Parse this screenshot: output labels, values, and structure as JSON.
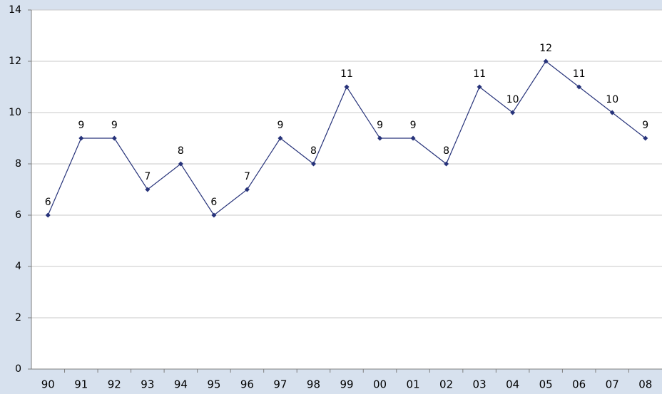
{
  "chart_data": {
    "type": "line",
    "categories": [
      "90",
      "91",
      "92",
      "93",
      "94",
      "95",
      "96",
      "97",
      "98",
      "99",
      "00",
      "01",
      "02",
      "03",
      "04",
      "05",
      "06",
      "07",
      "08"
    ],
    "values": [
      6,
      9,
      9,
      7,
      8,
      6,
      7,
      9,
      8,
      11,
      9,
      9,
      8,
      11,
      10,
      12,
      11,
      10,
      9
    ],
    "color": "#27337a",
    "ylim": [
      0,
      14
    ],
    "yticks": [
      0,
      2,
      4,
      6,
      8,
      10,
      12,
      14
    ],
    "grid": true
  }
}
